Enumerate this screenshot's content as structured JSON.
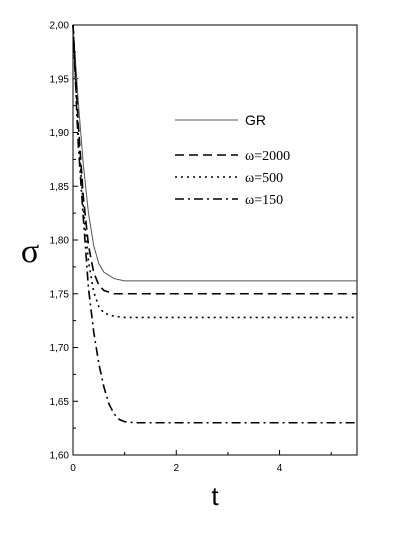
{
  "chart_data": {
    "type": "line",
    "title": "",
    "xlabel": "t",
    "ylabel": "σ",
    "xlim": [
      0,
      5.5
    ],
    "ylim": [
      1.6,
      2.0
    ],
    "x_ticks": [
      0,
      2,
      4
    ],
    "x_tick_labels": [
      "0",
      "2",
      "4"
    ],
    "y_ticks": [
      1.6,
      1.65,
      1.7,
      1.75,
      1.8,
      1.85,
      1.9,
      1.95,
      2.0
    ],
    "y_tick_labels": [
      "1,60",
      "1,65",
      "1,70",
      "1,75",
      "1,80",
      "1,85",
      "1,90",
      "1,95",
      "2,00"
    ],
    "grid": false,
    "legend_position": "top-right",
    "series": [
      {
        "name": "GR",
        "style": "solid",
        "color": "#555555",
        "x": [
          0,
          0.1,
          0.2,
          0.3,
          0.4,
          0.5,
          0.6,
          0.8,
          1.0,
          1.5,
          2.0,
          3.0,
          4.0,
          5.5
        ],
        "y": [
          2.0,
          1.93,
          1.87,
          1.825,
          1.795,
          1.778,
          1.77,
          1.764,
          1.762,
          1.762,
          1.762,
          1.762,
          1.762,
          1.762
        ]
      },
      {
        "name": "ω=2000",
        "style": "dashed",
        "color": "#000000",
        "x": [
          0,
          0.1,
          0.2,
          0.3,
          0.4,
          0.5,
          0.6,
          0.8,
          1.0,
          1.5,
          2.0,
          3.0,
          4.0,
          5.5
        ],
        "y": [
          2.0,
          1.91,
          1.84,
          1.795,
          1.77,
          1.758,
          1.753,
          1.75,
          1.75,
          1.75,
          1.75,
          1.75,
          1.75,
          1.75
        ]
      },
      {
        "name": "ω=500",
        "style": "dotted",
        "color": "#000000",
        "x": [
          0,
          0.1,
          0.2,
          0.3,
          0.4,
          0.5,
          0.6,
          0.8,
          1.0,
          1.5,
          2.0,
          3.0,
          4.0,
          5.5
        ],
        "y": [
          2.0,
          1.9,
          1.83,
          1.78,
          1.752,
          1.738,
          1.732,
          1.729,
          1.728,
          1.728,
          1.728,
          1.728,
          1.728,
          1.728
        ]
      },
      {
        "name": "ω=150",
        "style": "dashdot",
        "color": "#000000",
        "x": [
          0,
          0.1,
          0.2,
          0.3,
          0.4,
          0.5,
          0.6,
          0.7,
          0.8,
          0.9,
          1.0,
          1.2,
          1.5,
          2.0,
          3.0,
          4.0,
          5.5
        ],
        "y": [
          2.0,
          1.89,
          1.82,
          1.755,
          1.715,
          1.685,
          1.663,
          1.647,
          1.638,
          1.633,
          1.631,
          1.63,
          1.63,
          1.63,
          1.63,
          1.63,
          1.63
        ]
      }
    ]
  }
}
